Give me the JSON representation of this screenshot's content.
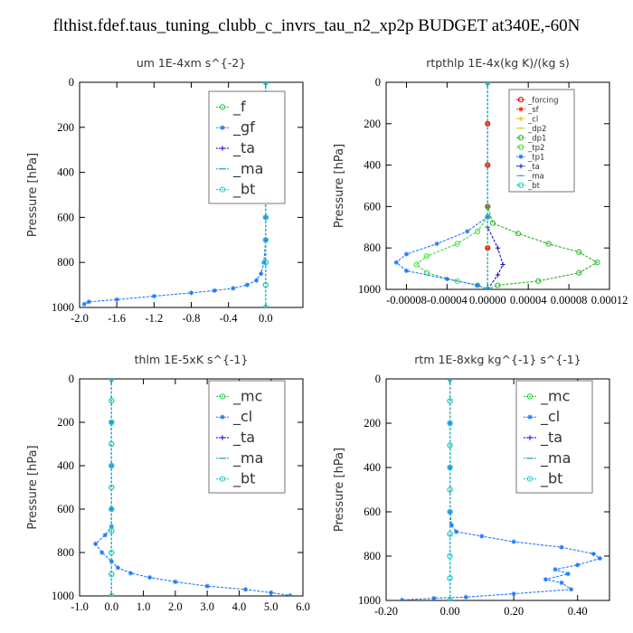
{
  "page_title": "flthist.fdef.taus_tuning_clubb_c_invrs_tau_n2_xp2p  BUDGET at340E,-60N",
  "chart_data": [
    {
      "type": "line",
      "title": "um   1E-4xm s^{-2}",
      "ylabel": "Pressure [hPa]",
      "xlim": [
        -2.0,
        0.4
      ],
      "ylim": [
        1000,
        0
      ],
      "xticks": [
        -2.0,
        -1.6,
        -1.2,
        -0.8,
        -0.4,
        0.0
      ],
      "xtick_labels": [
        "-2.0",
        "-1.6",
        "-1.2",
        "-0.8",
        "-0.4",
        "0.0"
      ],
      "yticks": [
        0,
        200,
        400,
        600,
        800,
        1000
      ],
      "legend_position": "top-right",
      "grid": false,
      "series": [
        {
          "name": "_f",
          "color": "#1ec83c",
          "values": [
            [
              0,
              0
            ],
            [
              0,
              100
            ],
            [
              0,
              200
            ],
            [
              0,
              300
            ],
            [
              0,
              400
            ],
            [
              0,
              500
            ],
            [
              0,
              600
            ],
            [
              0,
              700
            ],
            [
              0,
              800
            ],
            [
              0,
              900
            ],
            [
              0,
              1000
            ]
          ]
        },
        {
          "name": "_gf",
          "color": "#1e78ff",
          "values": [
            [
              0,
              0
            ],
            [
              0,
              100
            ],
            [
              0,
              200
            ],
            [
              0,
              300
            ],
            [
              0,
              400
            ],
            [
              0,
              500
            ],
            [
              0,
              600
            ],
            [
              0,
              700
            ],
            [
              -0.02,
              800
            ],
            [
              -0.05,
              850
            ],
            [
              -0.1,
              880
            ],
            [
              -0.2,
              900
            ],
            [
              -0.35,
              915
            ],
            [
              -0.55,
              925
            ],
            [
              -0.8,
              935
            ],
            [
              -1.2,
              950
            ],
            [
              -1.6,
              965
            ],
            [
              -1.9,
              975
            ],
            [
              -1.95,
              985
            ]
          ]
        },
        {
          "name": "_ta",
          "color": "#0000e0",
          "values": [
            [
              0,
              0
            ],
            [
              0,
              1000
            ]
          ]
        },
        {
          "name": "_ma",
          "color": "#1ea0c8",
          "values": [
            [
              0,
              0
            ],
            [
              0,
              1000
            ]
          ]
        },
        {
          "name": "_bt",
          "color": "#1ec8c8",
          "values": [
            [
              0,
              0
            ],
            [
              0,
              100
            ],
            [
              0,
              200
            ],
            [
              0,
              300
            ],
            [
              0,
              400
            ],
            [
              0,
              500
            ],
            [
              0,
              600
            ],
            [
              0,
              700
            ],
            [
              0,
              800
            ],
            [
              0,
              900
            ],
            [
              0,
              1000
            ]
          ]
        }
      ]
    },
    {
      "type": "line",
      "title": "rtpthlp   1E-4x(kg K)/(kg s)",
      "ylabel": "Pressure [hPa]",
      "xlim": [
        -0.0001,
        0.00012
      ],
      "ylim": [
        1000,
        0
      ],
      "xticks": [
        -8e-05,
        -4e-05,
        0.0,
        4e-05,
        8e-05,
        0.00012
      ],
      "xtick_labels": [
        "-0.00008",
        "-0.00004",
        "0.00000",
        "0.00004",
        "0.00008",
        "0.00012"
      ],
      "yticks": [
        0,
        200,
        400,
        600,
        800,
        1000
      ],
      "legend_position": "top-right",
      "grid": false,
      "series": [
        {
          "name": "_forcing",
          "color": "#d00000",
          "values": [
            [
              0,
              0
            ],
            [
              0,
              200
            ],
            [
              0,
              400
            ],
            [
              0,
              600
            ],
            [
              0,
              800
            ],
            [
              0,
              1000
            ]
          ]
        },
        {
          "name": "_sf",
          "color": "#ff2800",
          "values": [
            [
              0,
              0
            ],
            [
              0,
              200
            ],
            [
              0,
              400
            ],
            [
              0,
              600
            ],
            [
              0,
              800
            ],
            [
              0,
              1000
            ]
          ]
        },
        {
          "name": "_cl",
          "color": "#f0b400",
          "values": [
            [
              0,
              0
            ],
            [
              0,
              1000
            ]
          ]
        },
        {
          "name": "_dp2",
          "color": "#c8c800",
          "values": [
            [
              0,
              0
            ],
            [
              0,
              1000
            ]
          ]
        },
        {
          "name": "_dp1",
          "color": "#28b428",
          "values": [
            [
              0,
              0
            ],
            [
              0,
              600
            ],
            [
              5e-06,
              680
            ],
            [
              3e-05,
              730
            ],
            [
              6e-05,
              780
            ],
            [
              9e-05,
              820
            ],
            [
              0.000108,
              870
            ],
            [
              9e-05,
              920
            ],
            [
              5e-05,
              960
            ],
            [
              1e-05,
              980
            ],
            [
              0,
              1000
            ]
          ]
        },
        {
          "name": "_tp2",
          "color": "#3cdc3c",
          "values": [
            [
              0,
              0
            ],
            [
              0,
              650
            ],
            [
              -1e-05,
              720
            ],
            [
              -3e-05,
              780
            ],
            [
              -6e-05,
              840
            ],
            [
              -7e-05,
              880
            ],
            [
              -6e-05,
              920
            ],
            [
              -3e-05,
              960
            ],
            [
              -1e-05,
              980
            ],
            [
              0,
              1000
            ]
          ]
        },
        {
          "name": "_tp1",
          "color": "#1e78ff",
          "values": [
            [
              0,
              0
            ],
            [
              0,
              650
            ],
            [
              -2e-05,
              720
            ],
            [
              -5e-05,
              780
            ],
            [
              -8e-05,
              830
            ],
            [
              -9e-05,
              870
            ],
            [
              -8e-05,
              910
            ],
            [
              -4e-05,
              950
            ],
            [
              -1e-05,
              980
            ],
            [
              0,
              1000
            ]
          ]
        },
        {
          "name": "_ta",
          "color": "#1414c8",
          "values": [
            [
              0,
              0
            ],
            [
              0,
              700
            ],
            [
              1e-05,
              800
            ],
            [
              1.5e-05,
              880
            ],
            [
              1e-05,
              930
            ],
            [
              0,
              1000
            ]
          ]
        },
        {
          "name": "_ma",
          "color": "#1ea0c8",
          "values": [
            [
              0,
              0
            ],
            [
              0,
              1000
            ]
          ]
        },
        {
          "name": "_bt",
          "color": "#1ec8c8",
          "values": [
            [
              0,
              0
            ],
            [
              0,
              1000
            ]
          ]
        }
      ]
    },
    {
      "type": "line",
      "title": "thlm   1E-5xK s^{-1}",
      "ylabel": "Pressure [hPa]",
      "xlim": [
        -1.0,
        6.0
      ],
      "ylim": [
        1000,
        0
      ],
      "xticks": [
        -1.0,
        0.0,
        1.0,
        2.0,
        3.0,
        4.0,
        5.0,
        6.0
      ],
      "xtick_labels": [
        "-1.0",
        "0.0",
        "1.0",
        "2.0",
        "3.0",
        "4.0",
        "5.0",
        "6.0"
      ],
      "yticks": [
        0,
        200,
        400,
        600,
        800,
        1000
      ],
      "legend_position": "top-right",
      "grid": false,
      "series": [
        {
          "name": "_mc",
          "color": "#1ec83c",
          "values": [
            [
              0,
              0
            ],
            [
              0,
              100
            ],
            [
              0,
              200
            ],
            [
              0,
              300
            ],
            [
              0,
              400
            ],
            [
              0,
              500
            ],
            [
              0,
              600
            ],
            [
              0,
              700
            ],
            [
              0,
              800
            ],
            [
              0,
              900
            ],
            [
              0,
              1000
            ]
          ]
        },
        {
          "name": "_cl",
          "color": "#1e78ff",
          "values": [
            [
              0,
              0
            ],
            [
              0,
              200
            ],
            [
              0,
              400
            ],
            [
              0,
              600
            ],
            [
              0,
              680
            ],
            [
              -0.2,
              720
            ],
            [
              -0.5,
              760
            ],
            [
              -0.3,
              800
            ],
            [
              0,
              840
            ],
            [
              0.2,
              870
            ],
            [
              0.6,
              895
            ],
            [
              1.2,
              915
            ],
            [
              2.0,
              935
            ],
            [
              3.0,
              955
            ],
            [
              4.2,
              970
            ],
            [
              5.0,
              985
            ],
            [
              5.6,
              998
            ]
          ]
        },
        {
          "name": "_ta",
          "color": "#0000e0",
          "values": [
            [
              0,
              0
            ],
            [
              0,
              1000
            ]
          ]
        },
        {
          "name": "_ma",
          "color": "#1ea0c8",
          "values": [
            [
              0,
              0
            ],
            [
              0,
              1000
            ]
          ]
        },
        {
          "name": "_bt",
          "color": "#1ec8c8",
          "values": [
            [
              0,
              0
            ],
            [
              0,
              100
            ],
            [
              0,
              200
            ],
            [
              0,
              300
            ],
            [
              0,
              400
            ],
            [
              0,
              500
            ],
            [
              0,
              600
            ],
            [
              0,
              700
            ],
            [
              0,
              800
            ],
            [
              0,
              900
            ],
            [
              0,
              1000
            ]
          ]
        }
      ]
    },
    {
      "type": "line",
      "title": "rtm   1E-8xkg kg^{-1} s^{-1}",
      "ylabel": "Pressure [hPa]",
      "xlim": [
        -0.2,
        0.5
      ],
      "ylim": [
        1000,
        0
      ],
      "xticks": [
        -0.2,
        0.0,
        0.2,
        0.4
      ],
      "xtick_labels": [
        "-0.20",
        "0.00",
        "0.20",
        "0.40"
      ],
      "yticks": [
        0,
        200,
        400,
        600,
        800,
        1000
      ],
      "legend_position": "top-right",
      "grid": false,
      "series": [
        {
          "name": "_mc",
          "color": "#1ec83c",
          "values": [
            [
              0,
              0
            ],
            [
              0,
              100
            ],
            [
              0,
              200
            ],
            [
              0,
              300
            ],
            [
              0,
              400
            ],
            [
              0,
              500
            ],
            [
              0,
              600
            ],
            [
              0,
              700
            ],
            [
              0,
              800
            ],
            [
              0,
              900
            ],
            [
              0,
              1000
            ]
          ]
        },
        {
          "name": "_cl",
          "color": "#1e78ff",
          "values": [
            [
              0,
              0
            ],
            [
              0,
              200
            ],
            [
              0,
              400
            ],
            [
              0,
              600
            ],
            [
              0.005,
              660
            ],
            [
              0.02,
              690
            ],
            [
              0.1,
              710
            ],
            [
              0.2,
              735
            ],
            [
              0.35,
              760
            ],
            [
              0.45,
              790
            ],
            [
              0.47,
              810
            ],
            [
              0.4,
              840
            ],
            [
              0.33,
              860
            ],
            [
              0.37,
              880
            ],
            [
              0.3,
              905
            ],
            [
              0.35,
              920
            ],
            [
              0.38,
              950
            ],
            [
              0.2,
              970
            ],
            [
              0.05,
              985
            ],
            [
              -0.05,
              990
            ],
            [
              -0.15,
              998
            ]
          ]
        },
        {
          "name": "_ta",
          "color": "#0000e0",
          "values": [
            [
              0,
              0
            ],
            [
              0,
              1000
            ]
          ]
        },
        {
          "name": "_ma",
          "color": "#1ea0c8",
          "values": [
            [
              0,
              0
            ],
            [
              0,
              1000
            ]
          ]
        },
        {
          "name": "_bt",
          "color": "#1ec8c8",
          "values": [
            [
              0,
              0
            ],
            [
              0,
              100
            ],
            [
              0,
              200
            ],
            [
              0,
              300
            ],
            [
              0,
              400
            ],
            [
              0,
              500
            ],
            [
              0,
              600
            ],
            [
              0,
              700
            ],
            [
              0,
              800
            ],
            [
              0,
              900
            ],
            [
              0,
              1000
            ]
          ]
        }
      ]
    }
  ]
}
